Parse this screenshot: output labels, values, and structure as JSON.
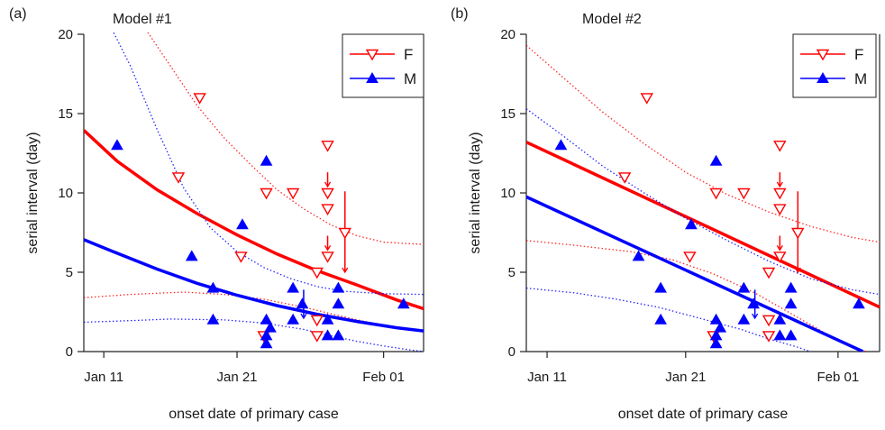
{
  "chart_data": [
    {
      "type": "scatter",
      "panel_label": "(a)",
      "title": "Model #1",
      "xlabel": "onset date of primary case",
      "ylabel": "serial interval (day)",
      "x_ticks": [
        {
          "day": 11,
          "label": "Jan 11"
        },
        {
          "day": 21,
          "label": "Jan 21"
        },
        {
          "day": 32,
          "label": "Feb 01"
        }
      ],
      "y_ticks": [
        0,
        5,
        10,
        15,
        20
      ],
      "xlim": [
        9.5,
        35
      ],
      "ylim": [
        0,
        20
      ],
      "legend_position": "top-right",
      "series": [
        {
          "name": "F",
          "color": "#ff0000",
          "marker": "open-triangle-down",
          "points": [
            [
              16.6,
              11
            ],
            [
              18.2,
              16
            ],
            [
              21.3,
              6
            ],
            [
              23.2,
              10
            ],
            [
              25.2,
              10
            ],
            [
              23.0,
              1
            ],
            [
              27.0,
              5
            ],
            [
              27.0,
              2
            ],
            [
              27.0,
              1
            ],
            [
              27.8,
              13
            ],
            [
              27.8,
              10
            ],
            [
              27.8,
              9
            ],
            [
              27.8,
              6
            ],
            [
              29.1,
              7.5
            ]
          ],
          "arrows": [
            [
              27.8,
              11.3,
              10.4
            ],
            [
              27.8,
              7.3,
              6.4
            ],
            [
              29.1,
              10.1,
              5.0
            ]
          ],
          "fit_line": [
            [
              9.5,
              13.95
            ],
            [
              12,
              12.0
            ],
            [
              15,
              10.2
            ],
            [
              18,
              8.7
            ],
            [
              21,
              7.35
            ],
            [
              24,
              6.15
            ],
            [
              27,
              5.1
            ],
            [
              30,
              4.2
            ],
            [
              33,
              3.25
            ],
            [
              35,
              2.7
            ]
          ],
          "ci_upper": [
            [
              14,
              20.5
            ],
            [
              16,
              18.0
            ],
            [
              18,
              15.5
            ],
            [
              20,
              13.5
            ],
            [
              22,
              11.8
            ],
            [
              24,
              10.2
            ],
            [
              26,
              9.0
            ],
            [
              28,
              8.0
            ],
            [
              30,
              7.3
            ],
            [
              32,
              6.9
            ],
            [
              35,
              6.75
            ]
          ],
          "ci_lower": [
            [
              9.5,
              3.4
            ],
            [
              13,
              3.6
            ],
            [
              17,
              3.75
            ],
            [
              20,
              3.6
            ],
            [
              23,
              3.3
            ],
            [
              26,
              2.8
            ],
            [
              28,
              2.4
            ],
            [
              30,
              2.0
            ],
            [
              32,
              1.65
            ],
            [
              35,
              1.3
            ]
          ]
        },
        {
          "name": "M",
          "color": "#0000ff",
          "marker": "filled-triangle-up",
          "points": [
            [
              12.0,
              13
            ],
            [
              17.6,
              6
            ],
            [
              19.2,
              4
            ],
            [
              19.2,
              2
            ],
            [
              21.4,
              8
            ],
            [
              23.2,
              12
            ],
            [
              23.2,
              2
            ],
            [
              23.2,
              1
            ],
            [
              23.2,
              0.5
            ],
            [
              23.5,
              1.5
            ],
            [
              25.2,
              4
            ],
            [
              25.2,
              2
            ],
            [
              25.9,
              3
            ],
            [
              27.8,
              2
            ],
            [
              27.8,
              1
            ],
            [
              28.6,
              4
            ],
            [
              28.6,
              3
            ],
            [
              28.6,
              1
            ],
            [
              33.5,
              3
            ]
          ],
          "arrows": [
            [
              26.0,
              3.9,
              2.1
            ]
          ],
          "fit_line": [
            [
              9.5,
              7.05
            ],
            [
              12,
              6.2
            ],
            [
              15,
              5.2
            ],
            [
              18,
              4.3
            ],
            [
              21,
              3.55
            ],
            [
              24,
              2.9
            ],
            [
              27,
              2.35
            ],
            [
              30,
              1.9
            ],
            [
              33,
              1.5
            ],
            [
              35,
              1.3
            ]
          ],
          "ci_upper": [
            [
              11.5,
              20.5
            ],
            [
              13,
              18.0
            ],
            [
              15,
              14.0
            ],
            [
              17,
              10.3
            ],
            [
              19,
              7.8
            ],
            [
              21,
              6.3
            ],
            [
              23,
              5.3
            ],
            [
              25,
              4.6
            ],
            [
              27,
              4.1
            ],
            [
              29,
              3.8
            ],
            [
              32,
              3.65
            ],
            [
              35,
              3.6
            ]
          ],
          "ci_lower": [
            [
              9.5,
              1.85
            ],
            [
              13,
              1.95
            ],
            [
              16,
              2.05
            ],
            [
              20,
              2.0
            ],
            [
              23,
              1.8
            ],
            [
              26,
              1.4
            ],
            [
              28,
              1.0
            ],
            [
              30,
              0.65
            ],
            [
              32,
              0.35
            ],
            [
              34,
              0.1
            ],
            [
              35,
              0.0
            ]
          ]
        }
      ]
    },
    {
      "type": "scatter",
      "panel_label": "(b)",
      "title": "Model #2",
      "xlabel": "onset date of primary case",
      "ylabel": "serial interval (day)",
      "x_ticks": [
        {
          "day": 11,
          "label": "Jan 11"
        },
        {
          "day": 21,
          "label": "Jan 21"
        },
        {
          "day": 32,
          "label": "Feb 01"
        }
      ],
      "y_ticks": [
        0,
        5,
        10,
        15,
        20
      ],
      "xlim": [
        9.5,
        35
      ],
      "ylim": [
        0,
        20
      ],
      "legend_position": "top-right",
      "series": [
        {
          "name": "F",
          "color": "#ff0000",
          "marker": "open-triangle-down",
          "points": [
            [
              16.6,
              11
            ],
            [
              18.2,
              16
            ],
            [
              21.3,
              6
            ],
            [
              23.2,
              10
            ],
            [
              25.2,
              10
            ],
            [
              23.0,
              1
            ],
            [
              27.0,
              5
            ],
            [
              27.0,
              2
            ],
            [
              27.0,
              1
            ],
            [
              27.8,
              13
            ],
            [
              27.8,
              10
            ],
            [
              27.8,
              9
            ],
            [
              27.8,
              6
            ],
            [
              29.1,
              7.5
            ]
          ],
          "arrows": [
            [
              27.8,
              11.3,
              10.4
            ],
            [
              27.8,
              7.3,
              6.4
            ],
            [
              29.1,
              10.1,
              5.0
            ]
          ],
          "fit_line": [
            [
              9.5,
              13.2
            ],
            [
              35,
              2.8
            ]
          ],
          "ci_upper": [
            [
              9.5,
              19.3
            ],
            [
              12,
              17.4
            ],
            [
              15,
              15.1
            ],
            [
              18,
              13.1
            ],
            [
              21,
              11.3
            ],
            [
              24,
              9.9
            ],
            [
              27,
              8.8
            ],
            [
              30,
              7.9
            ],
            [
              33,
              7.2
            ],
            [
              35,
              6.9
            ]
          ],
          "ci_lower": [
            [
              9.5,
              7.0
            ],
            [
              13,
              6.7
            ],
            [
              17,
              6.3
            ],
            [
              20,
              5.8
            ],
            [
              23,
              4.9
            ],
            [
              26,
              3.7
            ],
            [
              28,
              2.7
            ],
            [
              30,
              1.7
            ],
            [
              32,
              0.7
            ],
            [
              34,
              0.0
            ]
          ]
        },
        {
          "name": "M",
          "color": "#0000ff",
          "marker": "filled-triangle-up",
          "points": [
            [
              12.0,
              13
            ],
            [
              17.6,
              6
            ],
            [
              19.2,
              4
            ],
            [
              19.2,
              2
            ],
            [
              21.4,
              8
            ],
            [
              23.2,
              12
            ],
            [
              23.2,
              2
            ],
            [
              23.2,
              1
            ],
            [
              23.2,
              0.5
            ],
            [
              23.5,
              1.5
            ],
            [
              25.2,
              4
            ],
            [
              25.2,
              2
            ],
            [
              25.9,
              3
            ],
            [
              27.8,
              2
            ],
            [
              27.8,
              1
            ],
            [
              28.6,
              4
            ],
            [
              28.6,
              3
            ],
            [
              28.6,
              1
            ],
            [
              33.5,
              3
            ]
          ],
          "arrows": [
            [
              26.0,
              3.9,
              2.1
            ]
          ],
          "fit_line": [
            [
              9.5,
              9.75
            ],
            [
              33.8,
              0.0
            ]
          ],
          "ci_upper": [
            [
              9.5,
              15.3
            ],
            [
              12,
              13.7
            ],
            [
              15,
              11.7
            ],
            [
              18,
              10.0
            ],
            [
              21,
              8.4
            ],
            [
              24,
              7.0
            ],
            [
              27,
              5.7
            ],
            [
              30,
              4.6
            ],
            [
              33,
              3.9
            ],
            [
              35,
              3.6
            ]
          ],
          "ci_lower": [
            [
              9.5,
              4.0
            ],
            [
              13,
              3.7
            ],
            [
              16,
              3.3
            ],
            [
              19,
              2.8
            ],
            [
              22,
              2.1
            ],
            [
              25,
              1.4
            ],
            [
              27,
              0.8
            ],
            [
              29,
              0.3
            ],
            [
              30,
              0.0
            ]
          ]
        }
      ]
    }
  ]
}
